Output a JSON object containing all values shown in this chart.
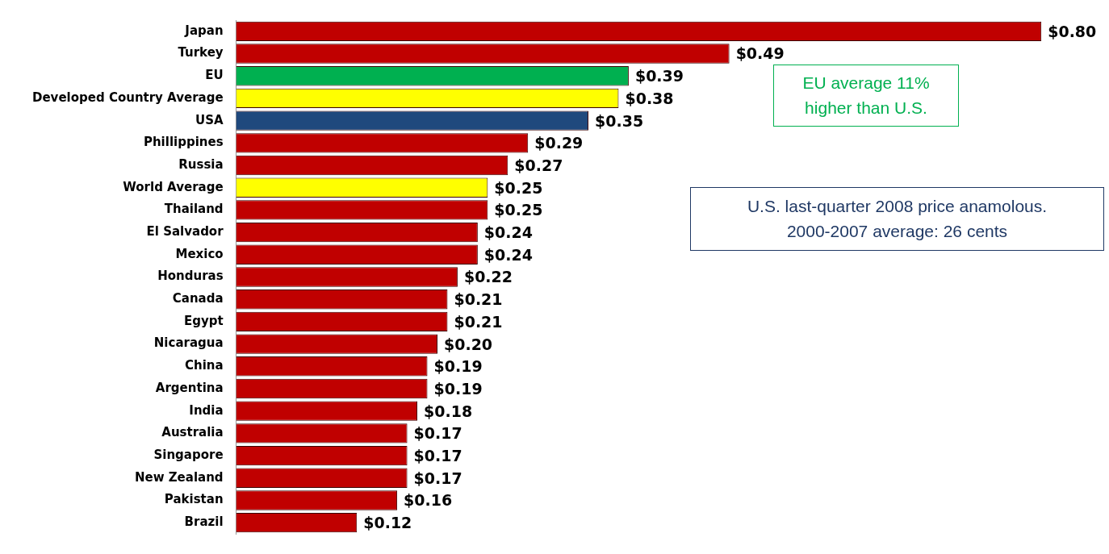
{
  "chart_data": {
    "type": "bar",
    "orientation": "horizontal",
    "categories": [
      "Japan",
      "Turkey",
      "EU",
      "Developed Country Average",
      "USA",
      "Phillippines",
      "Russia",
      "World Average",
      "Thailand",
      "El Salvador",
      "Mexico",
      "Honduras",
      "Canada",
      "Egypt",
      "Nicaragua",
      "China",
      "Argentina",
      "India",
      "Australia",
      "Singapore",
      "New Zealand",
      "Pakistan",
      "Brazil"
    ],
    "values": [
      0.8,
      0.49,
      0.39,
      0.38,
      0.35,
      0.29,
      0.27,
      0.25,
      0.25,
      0.24,
      0.24,
      0.22,
      0.21,
      0.21,
      0.2,
      0.19,
      0.19,
      0.18,
      0.17,
      0.17,
      0.17,
      0.16,
      0.12
    ],
    "value_labels": [
      "$0.80",
      "$0.49",
      "$0.39",
      "$0.38",
      "$0.35",
      "$0.29",
      "$0.27",
      "$0.25",
      "$0.25",
      "$0.24",
      "$0.24",
      "$0.22",
      "$0.21",
      "$0.21",
      "$0.20",
      "$0.19",
      "$0.19",
      "$0.18",
      "$0.17",
      "$0.17",
      "$0.17",
      "$0.16",
      "$0.12"
    ],
    "colors": [
      "#c00000",
      "#c00000",
      "#00b050",
      "#ffff00",
      "#1f497d",
      "#c00000",
      "#c00000",
      "#ffff00",
      "#c00000",
      "#c00000",
      "#c00000",
      "#c00000",
      "#c00000",
      "#c00000",
      "#c00000",
      "#c00000",
      "#c00000",
      "#c00000",
      "#c00000",
      "#c00000",
      "#c00000",
      "#c00000",
      "#c00000"
    ],
    "annotations": [
      "EU average 11%\nhigher than U.S.",
      "U.S. last-quarter 2008 price anamolous.\n2000-2007 average: 26 cents"
    ],
    "legend": false
  }
}
